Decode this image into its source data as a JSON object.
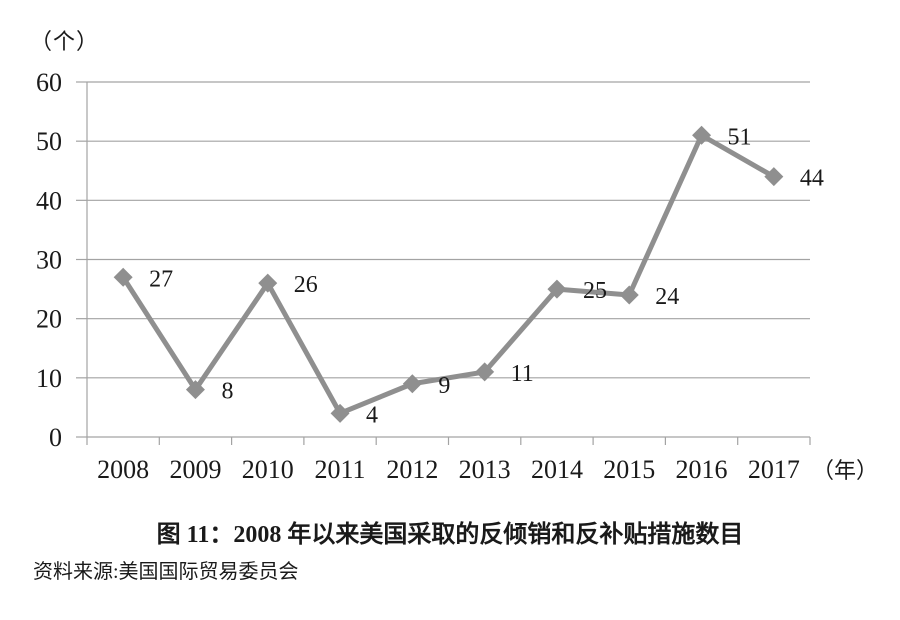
{
  "chart_data": {
    "type": "line",
    "title": "图 11：2008 年以来美国采取的反倾销和反补贴措施数目",
    "categories": [
      "2008",
      "2009",
      "2010",
      "2011",
      "2012",
      "2013",
      "2014",
      "2015",
      "2016",
      "2017"
    ],
    "values": [
      27,
      8,
      26,
      4,
      9,
      11,
      25,
      24,
      51,
      44
    ],
    "xlabel": "（年）",
    "ylabel": "（个）",
    "ylim": [
      0,
      60
    ],
    "y_ticks": [
      0,
      10,
      20,
      30,
      40,
      50,
      60
    ],
    "grid": "horizontal",
    "legend_position": "none",
    "data_labels_visible": true,
    "marker": "diamond",
    "colors": {
      "line": "#8f8f8f",
      "grid": "#a3a3a3",
      "text": "#1a1a1a"
    }
  },
  "source_note": "资料来源:美国国际贸易委员会"
}
